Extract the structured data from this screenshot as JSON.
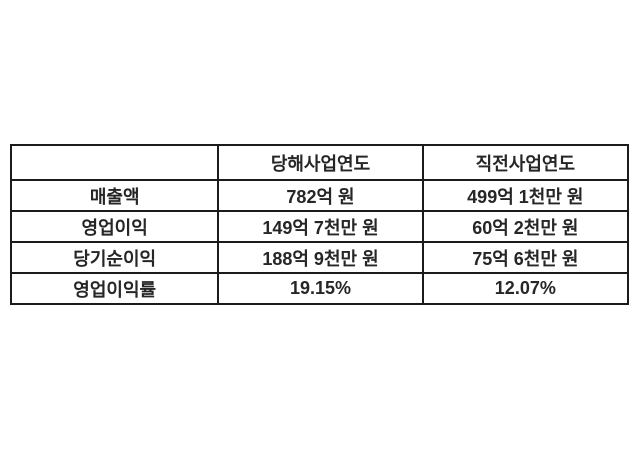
{
  "table": {
    "columns": {
      "label": "",
      "current": "당해사업연도",
      "previous": "직전사업연도"
    },
    "rows": [
      {
        "label": "매출액",
        "current": "782억 원",
        "previous": "499억 1천만 원"
      },
      {
        "label": "영업이익",
        "current": "149억 7천만 원",
        "previous": "60억 2천만 원"
      },
      {
        "label": "당기순이익",
        "current": "188억 9천만 원",
        "previous": "75억 6천만 원"
      },
      {
        "label": "영업이익률",
        "current": "19.15%",
        "previous": "12.07%"
      }
    ]
  },
  "colors": {
    "background": "#ffffff",
    "border": "#1b1b1b",
    "text": "#262626"
  },
  "chart_data": {
    "type": "table",
    "title": "",
    "columns": [
      "",
      "당해사업연도",
      "직전사업연도"
    ],
    "rows": [
      [
        "매출액",
        "782억 원",
        "499억 1천만 원"
      ],
      [
        "영업이익",
        "149억 7천만 원",
        "60억 2천만 원"
      ],
      [
        "당기순이익",
        "188억 9천만 원",
        "75억 6천만 원"
      ],
      [
        "영업이익률",
        "19.15%",
        "12.07%"
      ]
    ],
    "notes": "Financial summary table comparing current fiscal year vs previous fiscal year: revenue, operating profit, net profit, operating margin"
  }
}
